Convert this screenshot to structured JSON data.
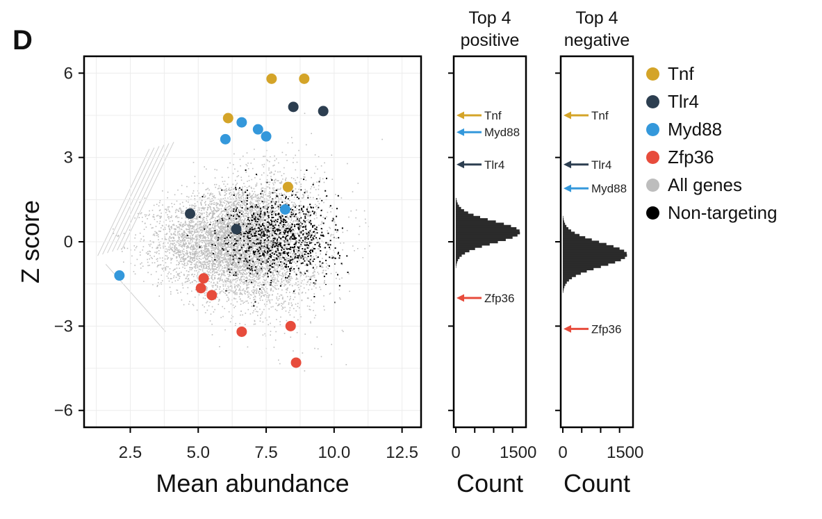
{
  "panel_label": "D",
  "colors": {
    "Tnf": "#D4A428",
    "Tlr4": "#2C3E50",
    "Myd88": "#3498DB",
    "Zfp36": "#E74C3C",
    "all_genes": "#BDBDBD",
    "non_targeting": "#000000",
    "histogram": "#2b2b2b"
  },
  "legend": [
    {
      "label": "Tnf",
      "color": "#D4A428"
    },
    {
      "label": "Tlr4",
      "color": "#2C3E50"
    },
    {
      "label": "Myd88",
      "color": "#3498DB"
    },
    {
      "label": "Zfp36",
      "color": "#E74C3C"
    },
    {
      "label": "All genes",
      "color": "#BDBDBD"
    },
    {
      "label": "Non-targeting",
      "color": "#000000"
    }
  ],
  "chart_data": [
    {
      "type": "scatter",
      "xlabel": "Mean abundance",
      "ylabel": "Z score",
      "xlim": [
        0.8,
        13.2
      ],
      "ylim": [
        -6.6,
        6.6
      ],
      "xticks": [
        2.5,
        5.0,
        7.5,
        10.0,
        12.5
      ],
      "xtick_labels": [
        "2.5",
        "5.0",
        "7.5",
        "10.0",
        "12.5"
      ],
      "yticks": [
        6,
        3,
        0,
        -3,
        -6
      ],
      "ytick_labels": [
        "6",
        "3",
        "0",
        "−3",
        "−6"
      ],
      "grid": true,
      "legend_position": "right",
      "background": {
        "all_genes_center": [
          6.5,
          0
        ],
        "non_targeting_center": [
          8.0,
          0.2
        ]
      },
      "series": [
        {
          "name": "Tnf",
          "points": [
            [
              6.1,
              4.4
            ],
            [
              7.7,
              5.8
            ],
            [
              8.9,
              5.8
            ],
            [
              8.3,
              1.95
            ]
          ]
        },
        {
          "name": "Tlr4",
          "points": [
            [
              8.5,
              4.8
            ],
            [
              9.6,
              4.65
            ],
            [
              4.7,
              1.0
            ],
            [
              6.4,
              0.45
            ]
          ]
        },
        {
          "name": "Myd88",
          "points": [
            [
              6.6,
              4.25
            ],
            [
              7.2,
              4.0
            ],
            [
              7.5,
              3.75
            ],
            [
              6.0,
              3.65
            ],
            [
              8.2,
              1.15
            ],
            [
              2.1,
              -1.2
            ]
          ]
        },
        {
          "name": "Zfp36",
          "points": [
            [
              5.2,
              -1.3
            ],
            [
              5.1,
              -1.65
            ],
            [
              5.5,
              -1.9
            ],
            [
              6.6,
              -3.2
            ],
            [
              8.4,
              -3.0
            ],
            [
              8.6,
              -4.3
            ]
          ]
        }
      ]
    },
    {
      "type": "bar",
      "title": "Top 4\npositive",
      "title_lines": [
        "Top 4",
        "positive"
      ],
      "xlabel": "Count",
      "xlim": [
        0,
        1800
      ],
      "xticks": [
        0,
        1500
      ],
      "xtick_labels": [
        "0",
        "1500"
      ],
      "histogram": {
        "mean": 0.35,
        "sd": 0.38,
        "peak": 1700
      },
      "annotations": [
        {
          "label": "Tnf",
          "y": 4.5,
          "color": "#D4A428"
        },
        {
          "label": "Myd88",
          "y": 3.9,
          "color": "#3498DB"
        },
        {
          "label": "Tlr4",
          "y": 2.75,
          "color": "#2C3E50"
        },
        {
          "label": "Zfp36",
          "y": -2.0,
          "color": "#E74C3C"
        }
      ]
    },
    {
      "type": "bar",
      "title": "Top 4\nnegative",
      "title_lines": [
        "Top 4",
        "negative"
      ],
      "xlabel": "Count",
      "xlim": [
        0,
        1800
      ],
      "xticks": [
        0,
        1500
      ],
      "xtick_labels": [
        "0",
        "1500"
      ],
      "histogram": {
        "mean": -0.45,
        "sd": 0.42,
        "peak": 1700
      },
      "annotations": [
        {
          "label": "Tnf",
          "y": 4.5,
          "color": "#D4A428"
        },
        {
          "label": "Tlr4",
          "y": 2.75,
          "color": "#2C3E50"
        },
        {
          "label": "Myd88",
          "y": 1.9,
          "color": "#3498DB"
        },
        {
          "label": "Zfp36",
          "y": -3.1,
          "color": "#E74C3C"
        }
      ]
    }
  ]
}
